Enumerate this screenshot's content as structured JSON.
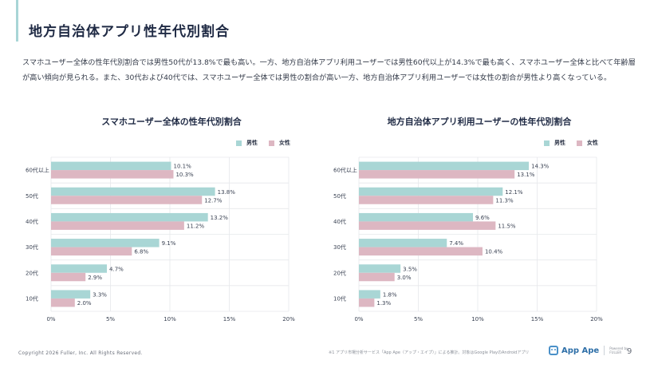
{
  "header": {
    "title": "地方自治体アプリ性年代別割合"
  },
  "description": "スマホユーザー全体の性年代別割合では男性50代が13.8%で最も高い。一方、地方自治体アプリ利用ユーザーでは男性60代以上が14.3%で最も高く、スマホユーザー全体と比べて年齢層が高い傾向が見られる。また、30代および40代では、スマホユーザー全体では男性の割合が高い一方、地方自治体アプリ利用ユーザーでは女性の割合が男性より高くなっている。",
  "colors": {
    "male": "#a9d6d5",
    "female": "#ddb7c2",
    "grid": "#e6e8eb",
    "accent": "#a8d5d6"
  },
  "chart_data": [
    {
      "type": "bar",
      "orientation": "horizontal",
      "title": "スマホユーザー全体の性年代別割合",
      "categories": [
        "60代以上",
        "50代",
        "40代",
        "30代",
        "20代",
        "10代"
      ],
      "series": [
        {
          "name": "男性",
          "values": [
            10.1,
            13.8,
            13.2,
            9.1,
            4.7,
            3.3
          ],
          "labels": [
            "10.1%",
            "13.8%",
            "13.2%",
            "9.1%",
            "4.7%",
            "3.3%"
          ]
        },
        {
          "name": "女性",
          "values": [
            10.3,
            12.7,
            11.2,
            6.8,
            2.9,
            2.0
          ],
          "labels": [
            "10.3%",
            "12.7%",
            "11.2%",
            "6.8%",
            "2.9%",
            "2.0%"
          ]
        }
      ],
      "xlim": [
        0,
        20
      ],
      "xticks": [
        0,
        5,
        10,
        15,
        20
      ],
      "xtick_labels": [
        "0%",
        "5%",
        "10%",
        "15%",
        "20%"
      ],
      "xlabel": "",
      "ylabel": "",
      "grid": true,
      "legend": "top-right"
    },
    {
      "type": "bar",
      "orientation": "horizontal",
      "title": "地方自治体アプリ利用ユーザーの性年代別割合",
      "categories": [
        "60代以上",
        "50代",
        "40代",
        "30代",
        "20代",
        "10代"
      ],
      "series": [
        {
          "name": "男性",
          "values": [
            14.3,
            12.1,
            9.6,
            7.4,
            3.5,
            1.8
          ],
          "labels": [
            "14.3%",
            "12.1%",
            "9.6%",
            "7.4%",
            "3.5%",
            "1.8%"
          ]
        },
        {
          "name": "女性",
          "values": [
            13.1,
            11.3,
            11.5,
            10.4,
            3.0,
            1.3
          ],
          "labels": [
            "13.1%",
            "11.3%",
            "11.5%",
            "10.4%",
            "3.0%",
            "1.3%"
          ]
        }
      ],
      "xlim": [
        0,
        20
      ],
      "xticks": [
        0,
        5,
        10,
        15,
        20
      ],
      "xtick_labels": [
        "0%",
        "5%",
        "10%",
        "15%",
        "20%"
      ],
      "xlabel": "",
      "ylabel": "",
      "grid": true,
      "legend": "top-right"
    }
  ],
  "legend": {
    "male": "男性",
    "female": "女性"
  },
  "footer": {
    "copyright": "Copyright 2026 Fuller, Inc. All Rights Reserved.",
    "note": "※1 アプリ市場分析サービス「App Ape（アップ・エイプ）」による推計。対象はGoogle PlayのAndroidアプリ",
    "logo_text": "App Ape",
    "powered_by": "Powered by",
    "company": "FULLER",
    "page_number": "9"
  }
}
